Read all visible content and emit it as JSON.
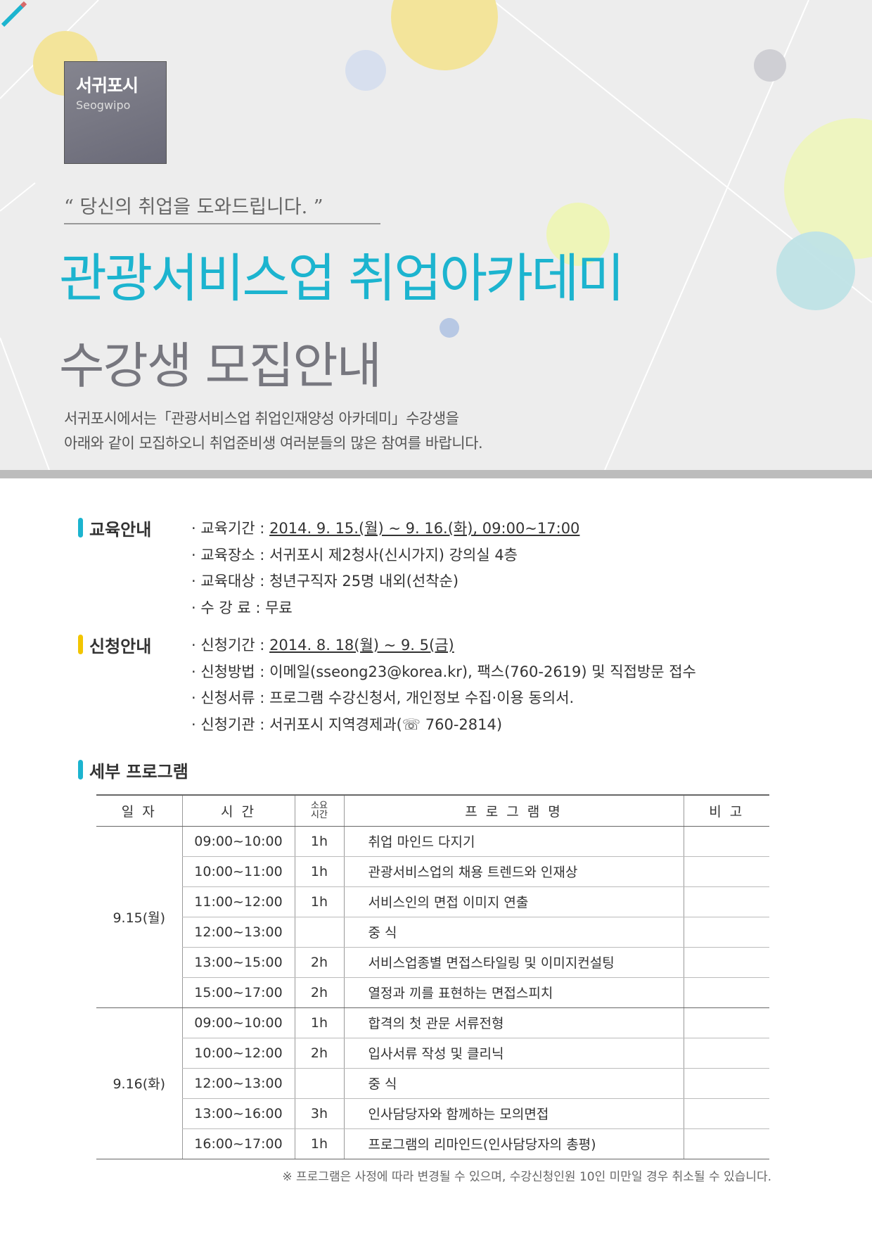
{
  "header": {
    "logo_ko": "서귀포시",
    "logo_en": "Seogwipo",
    "quote": "“ 당신의 취업을 도와드립니다. ”",
    "title": "관광서비스업 취업아카데미",
    "subtitle": "수강생 모집안내",
    "intro": [
      "서귀포시에서는「관광서비스업 취업인재양성 아카데미」수강생을",
      "아래와 같이 모집하오니 취업준비생 여러분들의 많은 참여를 바랍니다."
    ]
  },
  "colors": {
    "accent": "#1cb4cf",
    "yellow": "#f2c500"
  },
  "edu": {
    "heading": "교육안내",
    "items": [
      {
        "label": "· 교육기간 : ",
        "value": "2014. 9. 15.(월) ~ 9. 16.(화),  09:00~17:00",
        "u": true
      },
      {
        "label": "· 교육장소 : ",
        "value": "서귀포시 제2청사(신시가지) 강의실 4층"
      },
      {
        "label": "· 교육대상 : ",
        "value": "청년구직자 25명 내외(선착순)"
      },
      {
        "label": "· 수 강 료 : ",
        "value": "무료"
      }
    ]
  },
  "apply": {
    "heading": "신청안내",
    "items": [
      {
        "label": "· 신청기간 : ",
        "value": "2014. 8. 18(월) ~ 9. 5(금)",
        "u": true
      },
      {
        "label": "· 신청방법 : ",
        "value": "이메일(sseong23@korea.kr), 팩스(760-2619) 및 직접방문 접수"
      },
      {
        "label": "· 신청서류 : ",
        "value": "프로그램 수강신청서, 개인정보 수집·이용 동의서."
      },
      {
        "label": "· 신청기관 : ",
        "value": "서귀포시 지역경제과(☏ 760-2814)"
      }
    ]
  },
  "program": {
    "heading": "세부 프로그램",
    "headers": [
      "일 자",
      "시 간",
      "소요",
      "시간",
      "프 로 그 램 명",
      "비 고"
    ],
    "days": [
      {
        "day": "9.15(월)",
        "rows": [
          [
            "09:00~10:00",
            "1h",
            "취업 마인드 다지기"
          ],
          [
            "10:00~11:00",
            "1h",
            "관광서비스업의 채용 트렌드와 인재상"
          ],
          [
            "11:00~12:00",
            "1h",
            "서비스인의 면접 이미지 연출"
          ],
          [
            "12:00~13:00",
            "",
            "중  식"
          ],
          [
            "13:00~15:00",
            "2h",
            "서비스업종별 면접스타일링 및 이미지컨설팅"
          ],
          [
            "15:00~17:00",
            "2h",
            "열정과 끼를 표현하는 면접스피치"
          ]
        ]
      },
      {
        "day": "9.16(화)",
        "rows": [
          [
            "09:00~10:00",
            "1h",
            "합격의 첫 관문 서류전형"
          ],
          [
            "10:00~12:00",
            "2h",
            "입사서류 작성 및 클리닉"
          ],
          [
            "12:00~13:00",
            "",
            "중  식"
          ],
          [
            "13:00~16:00",
            "3h",
            "인사담당자와 함께하는 모의면접"
          ],
          [
            "16:00~17:00",
            "1h",
            "프로그램의 리마인드(인사담당자의 총평)"
          ]
        ]
      }
    ],
    "note": "※ 프로그램은 사정에 따라 변경될 수 있으며, 수강신청인원 10인 미만일 경우 취소될 수 있습니다."
  }
}
